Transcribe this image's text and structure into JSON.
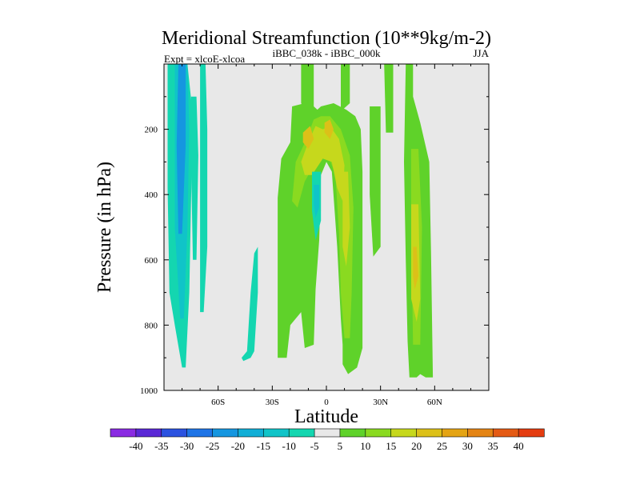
{
  "chart_data": {
    "type": "heatmap",
    "title": "Meridional Streamfunction (10**9kg/m-2)",
    "subtitle_left": "Expt = xlcoE-xlcoa",
    "subtitle_center": "iBBC_038k - iBBC_000k",
    "subtitle_right": "JJA",
    "xlabel": "Latitude",
    "ylabel": "Pressure (in hPa)",
    "xlim": [
      -90,
      90
    ],
    "ylim": [
      1000,
      0
    ],
    "x_ticks": [
      {
        "value": -60,
        "label": "60S"
      },
      {
        "value": -30,
        "label": "30S"
      },
      {
        "value": 0,
        "label": "0"
      },
      {
        "value": 30,
        "label": "30N"
      },
      {
        "value": 60,
        "label": "60N"
      }
    ],
    "y_ticks": [
      {
        "value": 200,
        "label": "200"
      },
      {
        "value": 400,
        "label": "400"
      },
      {
        "value": 600,
        "label": "600"
      },
      {
        "value": 800,
        "label": "800"
      },
      {
        "value": 1000,
        "label": "1000"
      }
    ],
    "levels": [
      -40,
      -35,
      -30,
      -25,
      -20,
      -15,
      -10,
      -5,
      5,
      10,
      15,
      20,
      25,
      30,
      35,
      40
    ],
    "colorbar_colors": [
      "#8a2be2",
      "#5a28d6",
      "#2b52e0",
      "#1e74e6",
      "#1596e0",
      "#10aed6",
      "#10c4c8",
      "#14d6b0",
      "#e8e8e8",
      "#5fd22a",
      "#8ada20",
      "#c6d81c",
      "#dcc018",
      "#e4a414",
      "#e48414",
      "#e45a14",
      "#e43c10"
    ],
    "background_color": "#e8e8e8",
    "regions": [
      {
        "value": -7,
        "color": "#14d6b0",
        "points": [
          [
            -88,
            0
          ],
          [
            -77,
            0
          ],
          [
            -74,
            160
          ],
          [
            -75,
            420
          ],
          [
            -76,
            700
          ],
          [
            -78,
            930
          ],
          [
            -80,
            930
          ],
          [
            -84,
            800
          ],
          [
            -87,
            700
          ],
          [
            -88,
            380
          ]
        ]
      },
      {
        "value": -12,
        "color": "#10c4c8",
        "points": [
          [
            -84,
            0
          ],
          [
            -77,
            0
          ],
          [
            -76,
            200
          ],
          [
            -77,
            500
          ],
          [
            -79,
            780
          ],
          [
            -81,
            780
          ],
          [
            -84,
            500
          ]
        ]
      },
      {
        "value": -17,
        "color": "#1596e0",
        "points": [
          [
            -82,
            0
          ],
          [
            -78,
            0
          ],
          [
            -78,
            250
          ],
          [
            -80,
            520
          ],
          [
            -82,
            520
          ],
          [
            -83,
            250
          ]
        ]
      },
      {
        "value": -7,
        "color": "#14d6b0",
        "points": [
          [
            -75,
            100
          ],
          [
            -72,
            100
          ],
          [
            -71,
            280
          ],
          [
            -72,
            600
          ],
          [
            -74,
            600
          ],
          [
            -75,
            300
          ]
        ]
      },
      {
        "value": -7,
        "color": "#14d6b0",
        "points": [
          [
            -70,
            0
          ],
          [
            -67,
            0
          ],
          [
            -66,
            200
          ],
          [
            -66,
            560
          ],
          [
            -68,
            760
          ],
          [
            -70,
            760
          ],
          [
            -70,
            420
          ]
        ]
      },
      {
        "value": -7,
        "color": "#14d6b0",
        "points": [
          [
            -47,
            900
          ],
          [
            -44,
            880
          ],
          [
            -42,
            700
          ],
          [
            -40,
            580
          ],
          [
            -38,
            560
          ],
          [
            -38,
            700
          ],
          [
            -40,
            880
          ],
          [
            -42,
            900
          ],
          [
            -46,
            910
          ]
        ]
      },
      {
        "value": 7,
        "color": "#5fd22a",
        "points": [
          [
            -27,
            730
          ],
          [
            -27,
            410
          ],
          [
            -25,
            290
          ],
          [
            -20,
            240
          ],
          [
            -19,
            130
          ],
          [
            -12,
            120
          ],
          [
            -7,
            130
          ],
          [
            -5,
            140
          ],
          [
            -3,
            130
          ],
          [
            4,
            120
          ],
          [
            11,
            140
          ],
          [
            16,
            160
          ],
          [
            19,
            200
          ],
          [
            20,
            330
          ],
          [
            20,
            660
          ],
          [
            20,
            870
          ],
          [
            17,
            930
          ],
          [
            12,
            950
          ],
          [
            9,
            920
          ],
          [
            9,
            860
          ],
          [
            8,
            780
          ],
          [
            6,
            560
          ],
          [
            3,
            330
          ],
          [
            0,
            300
          ],
          [
            -3,
            340
          ],
          [
            -4,
            540
          ],
          [
            -6,
            690
          ],
          [
            -7,
            860
          ],
          [
            -12,
            870
          ],
          [
            -14,
            760
          ],
          [
            -20,
            800
          ],
          [
            -22,
            900
          ],
          [
            -27,
            900
          ]
        ]
      },
      {
        "value": 7,
        "color": "#5fd22a",
        "points": [
          [
            -14,
            0
          ],
          [
            -7,
            0
          ],
          [
            -7,
            140
          ],
          [
            -12,
            140
          ],
          [
            -14,
            120
          ]
        ]
      },
      {
        "value": 7,
        "color": "#5fd22a",
        "points": [
          [
            8,
            0
          ],
          [
            13,
            0
          ],
          [
            13,
            120
          ],
          [
            9,
            140
          ],
          [
            8,
            140
          ]
        ]
      },
      {
        "value": 7,
        "color": "#5fd22a",
        "points": [
          [
            24,
            130
          ],
          [
            30,
            130
          ],
          [
            30,
            560
          ],
          [
            26,
            590
          ],
          [
            24,
            400
          ]
        ]
      },
      {
        "value": 7,
        "color": "#5fd22a",
        "points": [
          [
            32,
            0
          ],
          [
            37,
            0
          ],
          [
            37,
            210
          ],
          [
            33,
            210
          ]
        ]
      },
      {
        "value": 7,
        "color": "#5fd22a",
        "points": [
          [
            44,
            0
          ],
          [
            48,
            0
          ],
          [
            48,
            100
          ],
          [
            52,
            180
          ],
          [
            57,
            300
          ],
          [
            58,
            580
          ],
          [
            59,
            960
          ],
          [
            55,
            960
          ],
          [
            52,
            950
          ],
          [
            50,
            960
          ],
          [
            46,
            960
          ],
          [
            45,
            850
          ],
          [
            44,
            600
          ],
          [
            43,
            300
          ]
        ]
      },
      {
        "value": 12,
        "color": "#8ada20",
        "points": [
          [
            -19,
            420
          ],
          [
            -17,
            300
          ],
          [
            -11,
            230
          ],
          [
            -7,
            170
          ],
          [
            -3,
            160
          ],
          [
            2,
            160
          ],
          [
            8,
            200
          ],
          [
            13,
            280
          ],
          [
            15,
            440
          ],
          [
            14,
            700
          ],
          [
            13,
            840
          ],
          [
            10,
            840
          ],
          [
            8,
            700
          ],
          [
            7,
            520
          ],
          [
            5,
            340
          ],
          [
            1,
            280
          ],
          [
            -3,
            280
          ],
          [
            -8,
            320
          ],
          [
            -12,
            360
          ],
          [
            -16,
            440
          ]
        ]
      },
      {
        "value": 12,
        "color": "#8ada20",
        "points": [
          [
            47,
            260
          ],
          [
            51,
            260
          ],
          [
            53,
            500
          ],
          [
            52,
            860
          ],
          [
            48,
            860
          ],
          [
            47,
            500
          ]
        ]
      },
      {
        "value": 17,
        "color": "#c6d81c",
        "points": [
          [
            -14,
            300
          ],
          [
            -10,
            240
          ],
          [
            -6,
            190
          ],
          [
            -2,
            200
          ],
          [
            2,
            190
          ],
          [
            7,
            230
          ],
          [
            10,
            310
          ],
          [
            9,
            420
          ],
          [
            6,
            380
          ],
          [
            3,
            300
          ],
          [
            -2,
            290
          ],
          [
            -8,
            340
          ],
          [
            -12,
            340
          ]
        ]
      },
      {
        "value": 17,
        "color": "#c6d81c",
        "points": [
          [
            9,
            330
          ],
          [
            12,
            330
          ],
          [
            13,
            500
          ],
          [
            11,
            620
          ],
          [
            9,
            560
          ]
        ]
      },
      {
        "value": 17,
        "color": "#c6d81c",
        "points": [
          [
            47,
            430
          ],
          [
            51,
            430
          ],
          [
            52,
            720
          ],
          [
            50,
            790
          ],
          [
            47,
            720
          ]
        ]
      },
      {
        "value": 22,
        "color": "#dcc018",
        "points": [
          [
            -13,
            210
          ],
          [
            -9,
            190
          ],
          [
            -7,
            230
          ],
          [
            -10,
            260
          ],
          [
            -13,
            240
          ]
        ]
      },
      {
        "value": 22,
        "color": "#dcc018",
        "points": [
          [
            -1,
            180
          ],
          [
            2,
            170
          ],
          [
            4,
            200
          ],
          [
            2,
            230
          ],
          [
            -1,
            210
          ]
        ]
      },
      {
        "value": 22,
        "color": "#dcc018",
        "points": [
          [
            48,
            560
          ],
          [
            50,
            560
          ],
          [
            51,
            650
          ],
          [
            49,
            690
          ],
          [
            48,
            650
          ]
        ]
      },
      {
        "value": -7,
        "color": "#14d6b0",
        "points": [
          [
            -8,
            330
          ],
          [
            -3,
            330
          ],
          [
            -3,
            480
          ],
          [
            -6,
            540
          ],
          [
            -8,
            450
          ]
        ]
      },
      {
        "value": -12,
        "color": "#10c4c8",
        "points": [
          [
            -7,
            370
          ],
          [
            -4,
            370
          ],
          [
            -4,
            440
          ],
          [
            -6,
            470
          ],
          [
            -7,
            430
          ]
        ]
      }
    ]
  }
}
